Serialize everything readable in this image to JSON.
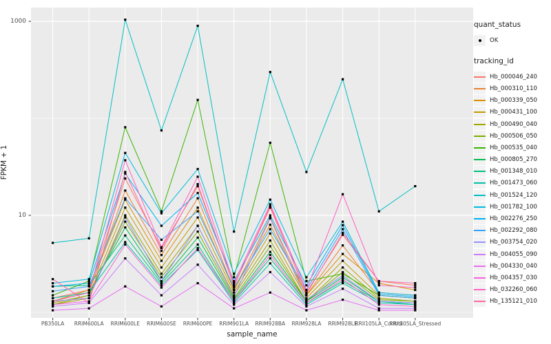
{
  "axes": {
    "x_title": "sample_name",
    "y_title": "FPKM + 1"
  },
  "legend": {
    "quant_status": {
      "title": "quant_status",
      "items": [
        {
          "label": "OK",
          "marker": "black-point"
        }
      ]
    },
    "tracking_id": {
      "title": "tracking_id"
    }
  },
  "colors": {
    "background": "#FFFFFF",
    "panel_bg": "#EBEBEB",
    "grid": "#FFFFFF",
    "tick_mark": "#333333",
    "tick_text": "#4D4D4D",
    "title_text": "#1A1A1A",
    "legend_key_bg": "#F2F2F2",
    "point": "#000000"
  },
  "chart_data": {
    "type": "line",
    "title": "",
    "xlabel": "sample_name",
    "ylabel": "FPKM + 1",
    "x_axis": {
      "label": "sample_name",
      "categories": [
        "PB350LA",
        "RRIM600LA",
        "RRIM600LE",
        "RRIM600SE",
        "RRIM600PE",
        "RRIM901LA",
        "RRIM928BA",
        "RRIM928LA",
        "RRIM928LE",
        "RRII105LA_Control",
        "RRII105LA_Stressed"
      ]
    },
    "y_axis": {
      "label": "FPKM + 1",
      "scale": "log10",
      "tick_labels": [
        "1000",
        "10"
      ],
      "tick_values": [
        1000,
        10
      ],
      "minor_gridline_values": [
        100,
        1
      ],
      "range": [
        0.88,
        1390
      ]
    },
    "grid": "on",
    "legend_position": "right",
    "point_marker": {
      "shape": "small-black-point",
      "color": "#000000",
      "status": "OK"
    },
    "categories": [
      "PB350LA",
      "RRIM600LA",
      "RRIM600LE",
      "RRIM600SE",
      "RRIM600PE",
      "RRIM901LA",
      "RRIM928BA",
      "RRIM928LA",
      "RRIM928LE",
      "RRII105LA_Control",
      "RRII105LA_Stressed"
    ],
    "series": [
      {
        "name": "Hb_000046_240",
        "color": "#F8766D",
        "values": [
          1.4,
          1.7,
          24,
          4.6,
          20,
          1.9,
          12,
          1.6,
          6.3,
          2.1,
          1.9
        ]
      },
      {
        "name": "Hb_000310_110",
        "color": "#EA8331",
        "values": [
          1.3,
          1.6,
          18,
          3.9,
          15,
          1.7,
          9.5,
          1.5,
          4.9,
          1.6,
          1.5
        ]
      },
      {
        "name": "Hb_000339_050",
        "color": "#D89000",
        "values": [
          1.3,
          1.7,
          14.5,
          3.4,
          12,
          1.7,
          8,
          1.5,
          4.0,
          2.0,
          1.7
        ]
      },
      {
        "name": "Hb_000431_100",
        "color": "#C09B00",
        "values": [
          1.25,
          1.5,
          12,
          2.9,
          9.5,
          1.6,
          6.5,
          1.4,
          3.4,
          1.5,
          1.4
        ]
      },
      {
        "name": "Hb_000490_040",
        "color": "#A3A500",
        "values": [
          1.2,
          1.4,
          10,
          2.5,
          7.8,
          1.5,
          5.5,
          1.3,
          2.9,
          1.4,
          1.3
        ]
      },
      {
        "name": "Hb_000506_050",
        "color": "#7CAE00",
        "values": [
          1.2,
          1.5,
          8.6,
          2.3,
          6.8,
          1.4,
          4.8,
          1.3,
          2.6,
          1.35,
          1.3
        ]
      },
      {
        "name": "Hb_000535_040",
        "color": "#39B600",
        "values": [
          1.5,
          2.1,
          81,
          11,
          155,
          2.3,
          56,
          2.1,
          2.5,
          1.5,
          1.4
        ]
      },
      {
        "name": "Hb_000805_270",
        "color": "#00BB4E",
        "values": [
          1.3,
          1.6,
          7.5,
          2.1,
          5.9,
          1.35,
          4.2,
          1.3,
          2.3,
          1.3,
          1.25
        ]
      },
      {
        "name": "Hb_001348_010",
        "color": "#00BF7D",
        "values": [
          1.85,
          1.9,
          6.2,
          2.0,
          5.0,
          1.3,
          3.6,
          1.25,
          2.1,
          1.3,
          1.2
        ]
      },
      {
        "name": "Hb_001473_060",
        "color": "#00C1A3",
        "values": [
          1.4,
          1.6,
          5.3,
          1.9,
          4.4,
          1.25,
          3.2,
          1.2,
          2.0,
          1.25,
          1.2
        ]
      },
      {
        "name": "Hb_001524_120",
        "color": "#00BFC4",
        "values": [
          5.2,
          5.8,
          1040,
          75,
          900,
          6.8,
          300,
          28,
          253,
          11,
          20
        ]
      },
      {
        "name": "Hb_001782_100",
        "color": "#00BAE0",
        "values": [
          2.0,
          2.2,
          44,
          10.5,
          30,
          2.5,
          14.5,
          2.3,
          8.6,
          1.6,
          1.5
        ]
      },
      {
        "name": "Hb_002276_250",
        "color": "#00B0F6",
        "values": [
          1.85,
          2.0,
          27,
          7.8,
          17,
          2.1,
          10,
          1.9,
          7.9,
          1.55,
          1.45
        ]
      },
      {
        "name": "Hb_002292_080",
        "color": "#35A2FF",
        "values": [
          1.65,
          1.85,
          15,
          5.6,
          11,
          1.8,
          7.2,
          1.7,
          7.2,
          1.5,
          1.4
        ]
      },
      {
        "name": "Hb_003754_020",
        "color": "#9590FF",
        "values": [
          1.3,
          1.4,
          9.5,
          2.1,
          7.8,
          1.45,
          9.3,
          1.35,
          2.4,
          1.3,
          1.25
        ]
      },
      {
        "name": "Hb_004055_090",
        "color": "#C77CFF",
        "values": [
          1.15,
          1.25,
          3.6,
          1.5,
          3.1,
          1.2,
          2.6,
          1.15,
          1.75,
          1.1,
          1.1
        ]
      },
      {
        "name": "Hb_004330_040",
        "color": "#E76BF3",
        "values": [
          1.05,
          1.1,
          1.85,
          1.15,
          2.0,
          1.1,
          1.6,
          1.05,
          1.35,
          1.05,
          1.05
        ]
      },
      {
        "name": "Hb_004357_030",
        "color": "#FA62DB",
        "values": [
          1.2,
          1.3,
          5.0,
          1.8,
          4.6,
          1.3,
          3.9,
          1.25,
          2.2,
          1.2,
          1.15
        ]
      },
      {
        "name": "Hb_032260_060",
        "color": "#FF61C3",
        "values": [
          1.3,
          1.6,
          37,
          4.7,
          25,
          2.0,
          13,
          1.7,
          16.5,
          1.9,
          1.8
        ]
      },
      {
        "name": "Hb_135121_010",
        "color": "#FF67A4",
        "values": [
          2.2,
          1.25,
          28,
          4.3,
          21,
          1.85,
          12.5,
          1.55,
          6.6,
          2.1,
          2.0
        ]
      }
    ]
  }
}
